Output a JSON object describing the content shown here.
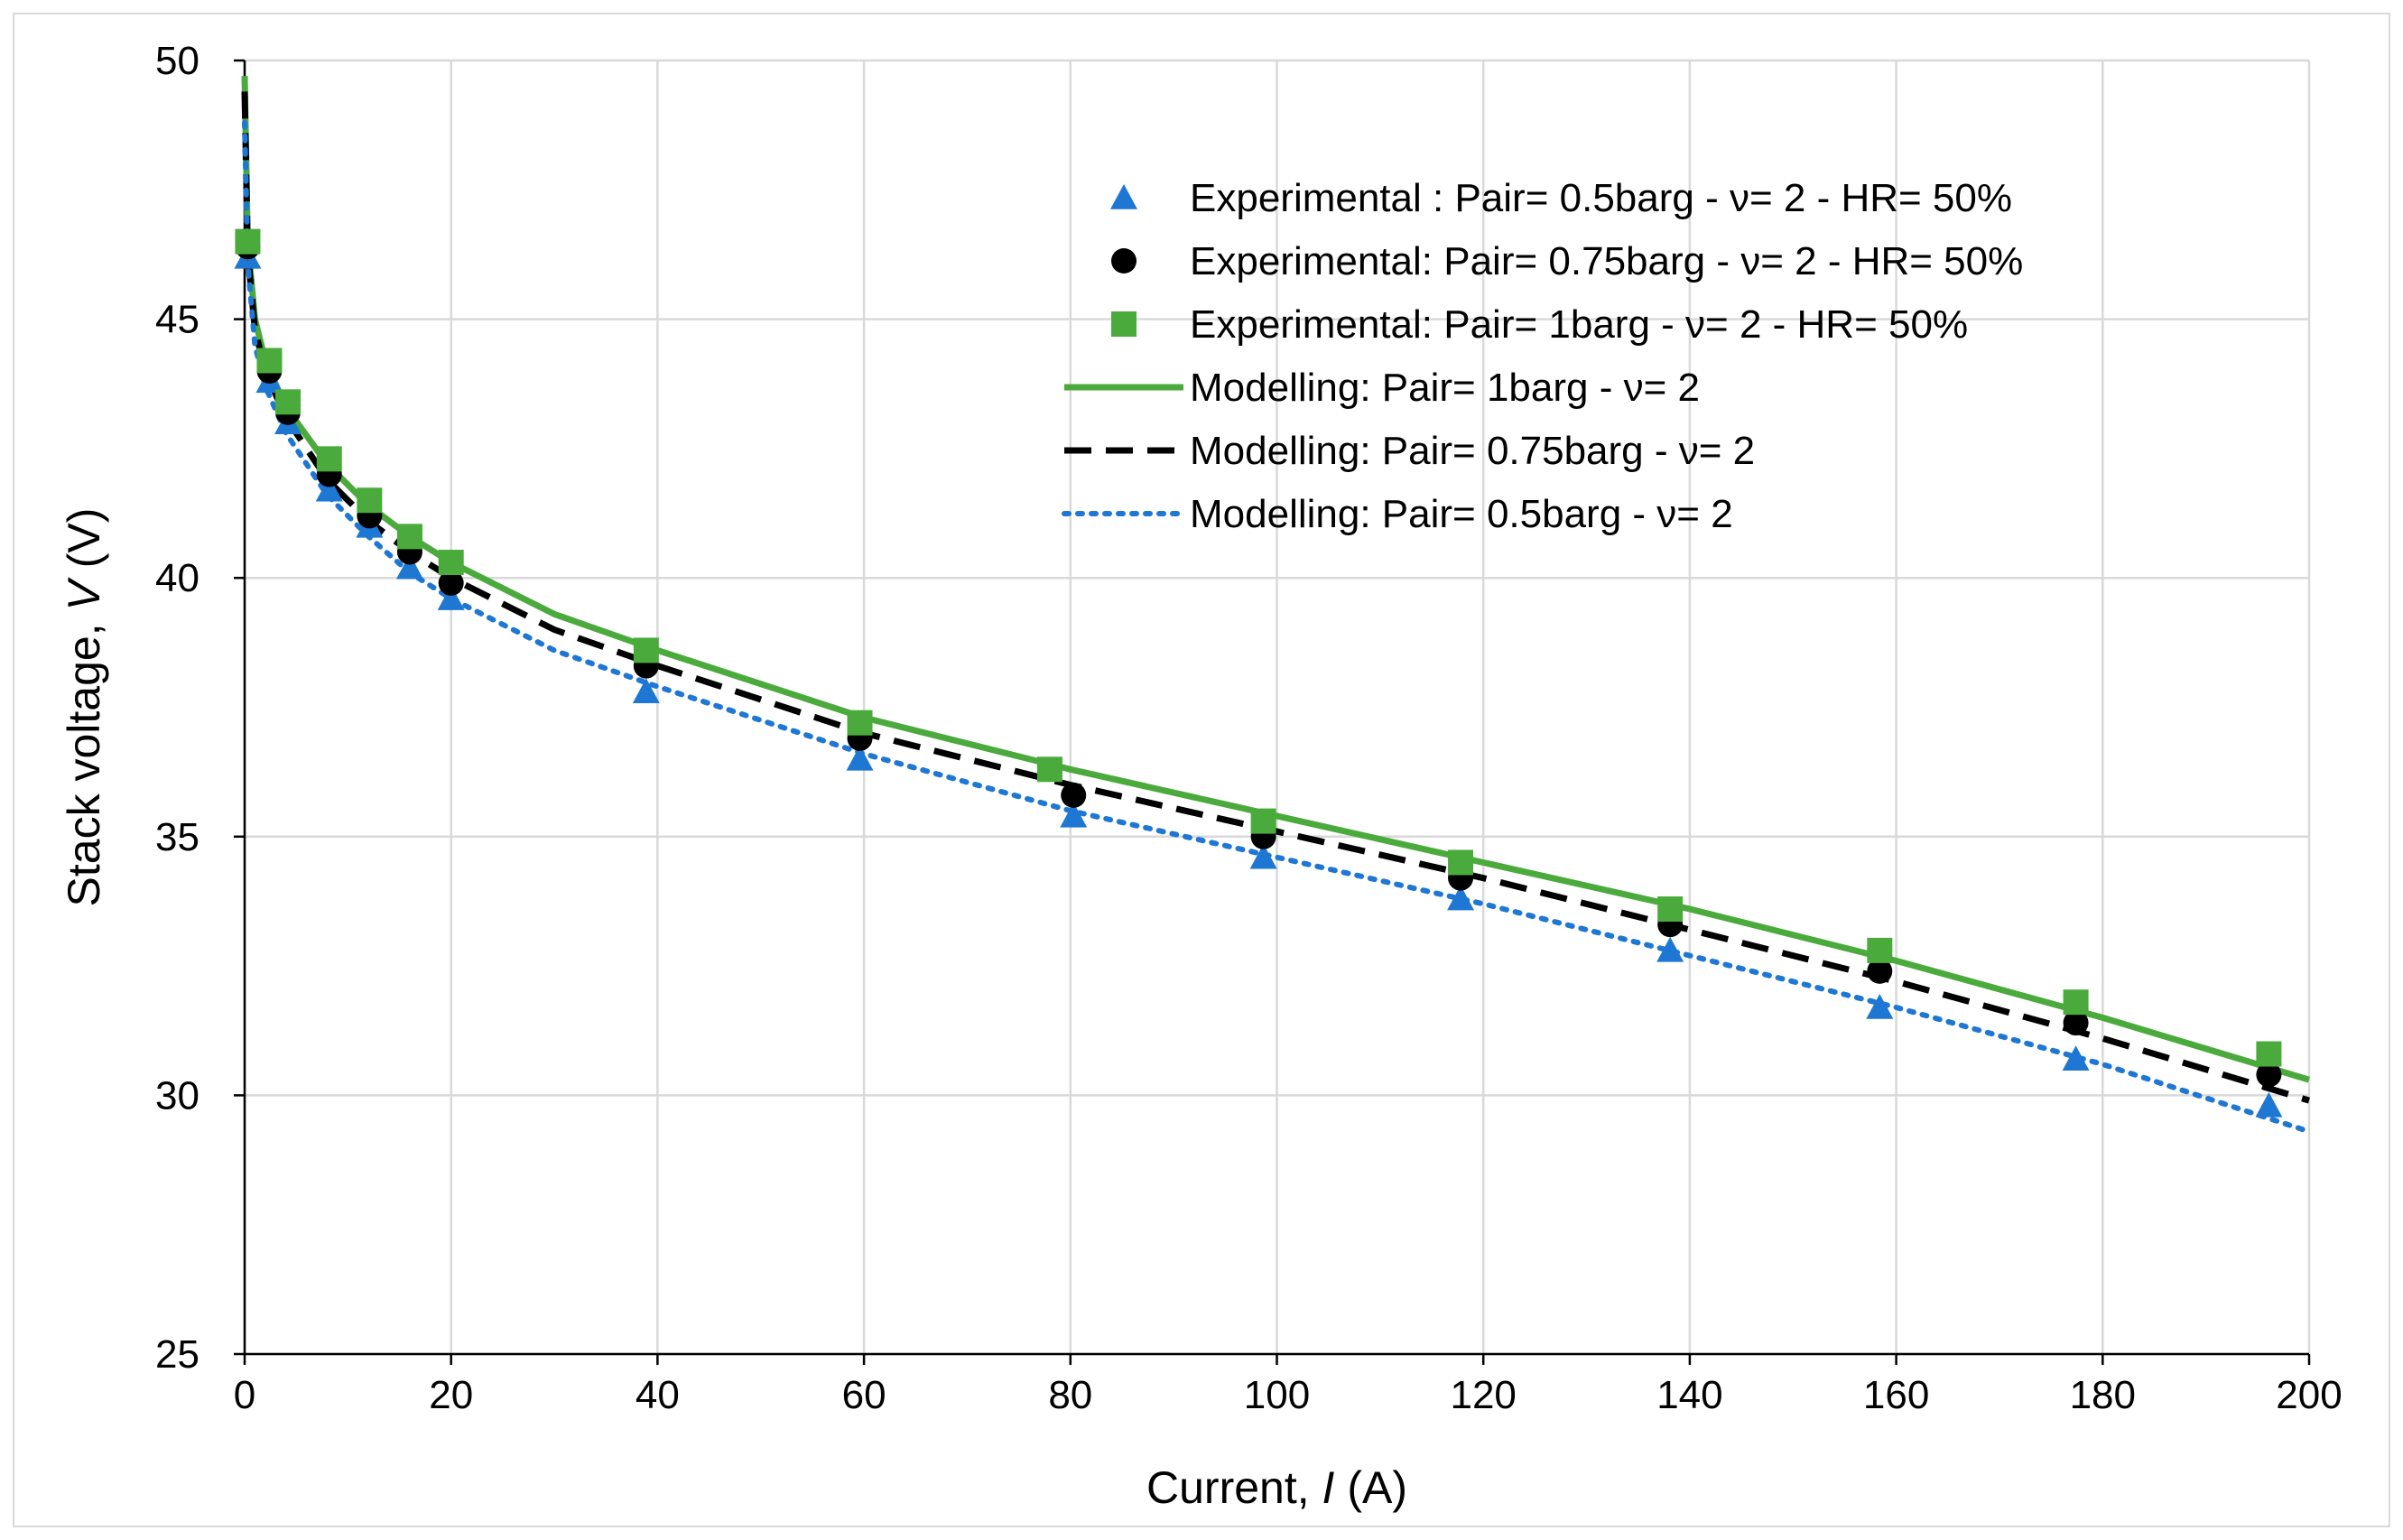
{
  "chart_data": {
    "type": "line",
    "xlabel": {
      "prefix": "Current, ",
      "var": "I",
      "suffix": " (A)"
    },
    "ylabel": {
      "prefix": "Stack voltage, ",
      "var": "V",
      "suffix": " (V)"
    },
    "xlim": [
      0,
      200
    ],
    "ylim": [
      25,
      50
    ],
    "xticks": [
      0,
      20,
      40,
      60,
      80,
      100,
      120,
      140,
      160,
      180,
      200
    ],
    "yticks": [
      25,
      30,
      35,
      40,
      45,
      50
    ],
    "grid": true,
    "legend_position": "top-right",
    "series": [
      {
        "name": "Experimental : Pair= 0.5barg - ν= 2 - HR= 50%",
        "kind": "scatter",
        "marker": "triangle",
        "color": "#1f77d4",
        "x": [
          0.3,
          2.4,
          4.2,
          8.2,
          12.1,
          16,
          20,
          38.9,
          59.6,
          80.3,
          98.7,
          117.8,
          138.1,
          158.4,
          177.4,
          196.1
        ],
        "y": [
          46.2,
          43.8,
          43.0,
          41.7,
          41.0,
          40.2,
          39.6,
          37.8,
          36.5,
          35.4,
          34.6,
          33.8,
          32.8,
          31.7,
          30.7,
          29.8
        ]
      },
      {
        "name": "Experimental: Pair= 0.75barg - ν= 2 - HR= 50%",
        "kind": "scatter",
        "marker": "circle",
        "color": "#000000",
        "x": [
          0.3,
          2.4,
          4.2,
          8.2,
          12.1,
          16,
          20,
          38.9,
          59.6,
          80.3,
          98.7,
          117.8,
          138.1,
          158.4,
          177.4,
          196.1
        ],
        "y": [
          46.4,
          44.0,
          43.2,
          42.0,
          41.2,
          40.5,
          39.9,
          38.3,
          36.9,
          35.8,
          35.0,
          34.2,
          33.3,
          32.4,
          31.4,
          30.4
        ]
      },
      {
        "name": "Experimental: Pair= 1barg - ν= 2 - HR= 50%",
        "kind": "scatter",
        "marker": "square",
        "color": "#4aab3c",
        "x": [
          0.3,
          2.4,
          4.2,
          8.2,
          12.1,
          16,
          20,
          38.9,
          59.6,
          78,
          98.7,
          117.8,
          138.1,
          158.4,
          177.4,
          196.1
        ],
        "y": [
          46.5,
          44.2,
          43.4,
          42.3,
          41.5,
          40.8,
          40.3,
          38.6,
          37.2,
          36.3,
          35.3,
          34.5,
          33.6,
          32.8,
          31.8,
          30.8
        ]
      },
      {
        "name": "Modelling: Pair= 1barg - ν= 2",
        "kind": "line",
        "dash": "solid",
        "color": "#4aab3c",
        "x": [
          0,
          0.3,
          1,
          2,
          4,
          8,
          12,
          16,
          20,
          30,
          40,
          60,
          80,
          100,
          120,
          140,
          160,
          180,
          200
        ],
        "y": [
          49.7,
          46.5,
          45.0,
          44.2,
          43.3,
          42.2,
          41.4,
          40.8,
          40.3,
          39.3,
          38.6,
          37.3,
          36.3,
          35.4,
          34.5,
          33.6,
          32.6,
          31.5,
          30.3
        ]
      },
      {
        "name": "Modelling: Pair= 0.75barg - ν= 2",
        "kind": "line",
        "dash": "dashed",
        "color": "#000000",
        "x": [
          0,
          0.3,
          1,
          2,
          4,
          8,
          12,
          16,
          20,
          30,
          40,
          60,
          80,
          100,
          120,
          140,
          160,
          180,
          200
        ],
        "y": [
          49.4,
          46.3,
          44.8,
          44.0,
          43.1,
          41.9,
          41.1,
          40.5,
          40.0,
          39.0,
          38.3,
          37.0,
          36.0,
          35.1,
          34.2,
          33.2,
          32.2,
          31.1,
          29.9
        ]
      },
      {
        "name": "Modelling: Pair= 0.5barg - ν= 2",
        "kind": "line",
        "dash": "dotted",
        "color": "#1f77d4",
        "x": [
          0,
          0.3,
          1,
          2,
          4,
          8,
          12,
          16,
          20,
          30,
          40,
          60,
          80,
          100,
          120,
          140,
          160,
          180,
          200
        ],
        "y": [
          48.8,
          46.1,
          44.5,
          43.7,
          42.8,
          41.6,
          40.8,
          40.1,
          39.6,
          38.6,
          37.9,
          36.6,
          35.5,
          34.6,
          33.7,
          32.7,
          31.7,
          30.6,
          29.3
        ]
      }
    ]
  }
}
